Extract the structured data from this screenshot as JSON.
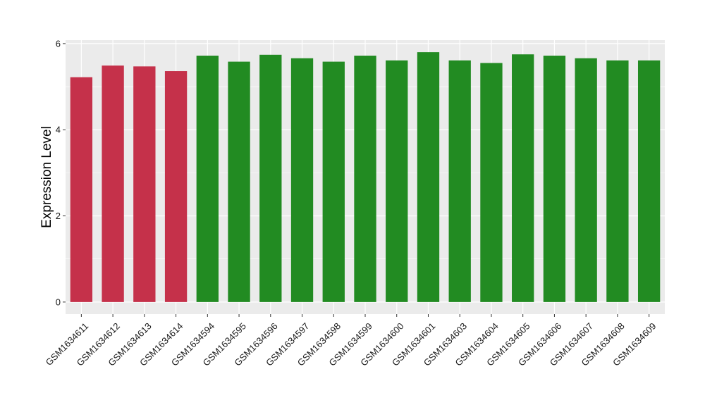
{
  "chart_data": {
    "type": "bar",
    "title": "",
    "xlabel": "",
    "ylabel": "Expression Level",
    "ylim": [
      -0.28,
      6.08
    ],
    "yticks": [
      0,
      2,
      4,
      6
    ],
    "grid": true,
    "panel_background": "#ebebeb",
    "grid_color": "#ffffff",
    "categories": [
      "GSM1634611",
      "GSM1634612",
      "GSM1634613",
      "GSM1634614",
      "GSM1634594",
      "GSM1634595",
      "GSM1634596",
      "GSM1634597",
      "GSM1634598",
      "GSM1634599",
      "GSM1634600",
      "GSM1634601",
      "GSM1634603",
      "GSM1634604",
      "GSM1634605",
      "GSM1634606",
      "GSM1634607",
      "GSM1634608",
      "GSM1634609"
    ],
    "values": [
      5.22,
      5.49,
      5.47,
      5.36,
      5.72,
      5.58,
      5.74,
      5.66,
      5.58,
      5.72,
      5.61,
      5.8,
      5.61,
      5.55,
      5.75,
      5.72,
      5.66,
      5.61,
      5.61
    ],
    "bar_colors": [
      "#c5314a",
      "#c5314a",
      "#c5314a",
      "#c5314a",
      "#228b22",
      "#228b22",
      "#228b22",
      "#228b22",
      "#228b22",
      "#228b22",
      "#228b22",
      "#228b22",
      "#228b22",
      "#228b22",
      "#228b22",
      "#228b22",
      "#228b22",
      "#228b22",
      "#228b22"
    ]
  }
}
